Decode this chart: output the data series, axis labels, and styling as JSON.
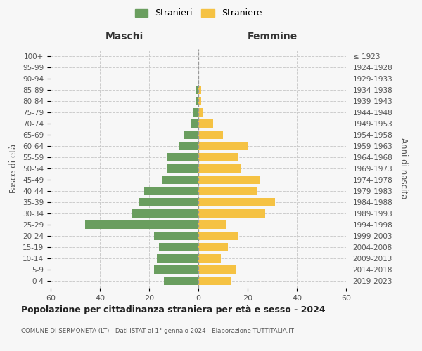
{
  "age_groups": [
    "0-4",
    "5-9",
    "10-14",
    "15-19",
    "20-24",
    "25-29",
    "30-34",
    "35-39",
    "40-44",
    "45-49",
    "50-54",
    "55-59",
    "60-64",
    "65-69",
    "70-74",
    "75-79",
    "80-84",
    "85-89",
    "90-94",
    "95-99",
    "100+"
  ],
  "birth_years": [
    "2019-2023",
    "2014-2018",
    "2009-2013",
    "2004-2008",
    "1999-2003",
    "1994-1998",
    "1989-1993",
    "1984-1988",
    "1979-1983",
    "1974-1978",
    "1969-1973",
    "1964-1968",
    "1959-1963",
    "1954-1958",
    "1949-1953",
    "1944-1948",
    "1939-1943",
    "1934-1938",
    "1929-1933",
    "1924-1928",
    "≤ 1923"
  ],
  "males": [
    14,
    18,
    17,
    16,
    18,
    46,
    27,
    24,
    22,
    15,
    13,
    13,
    8,
    6,
    3,
    2,
    1,
    1,
    0,
    0,
    0
  ],
  "females": [
    13,
    15,
    9,
    12,
    16,
    11,
    27,
    31,
    24,
    25,
    17,
    16,
    20,
    10,
    6,
    2,
    1,
    1,
    0,
    0,
    0
  ],
  "male_color": "#6a9e5f",
  "female_color": "#f5c243",
  "background_color": "#f7f7f7",
  "grid_color": "#cccccc",
  "title": "Popolazione per cittadinanza straniera per età e sesso - 2024",
  "subtitle": "COMUNE DI SERMONETA (LT) - Dati ISTAT al 1° gennaio 2024 - Elaborazione TUTTITALIA.IT",
  "xlabel_left": "Maschi",
  "xlabel_right": "Femmine",
  "ylabel_left": "Fasce di età",
  "ylabel_right": "Anni di nascita",
  "legend_male": "Stranieri",
  "legend_female": "Straniere",
  "xlim": 60,
  "bar_height": 0.75
}
